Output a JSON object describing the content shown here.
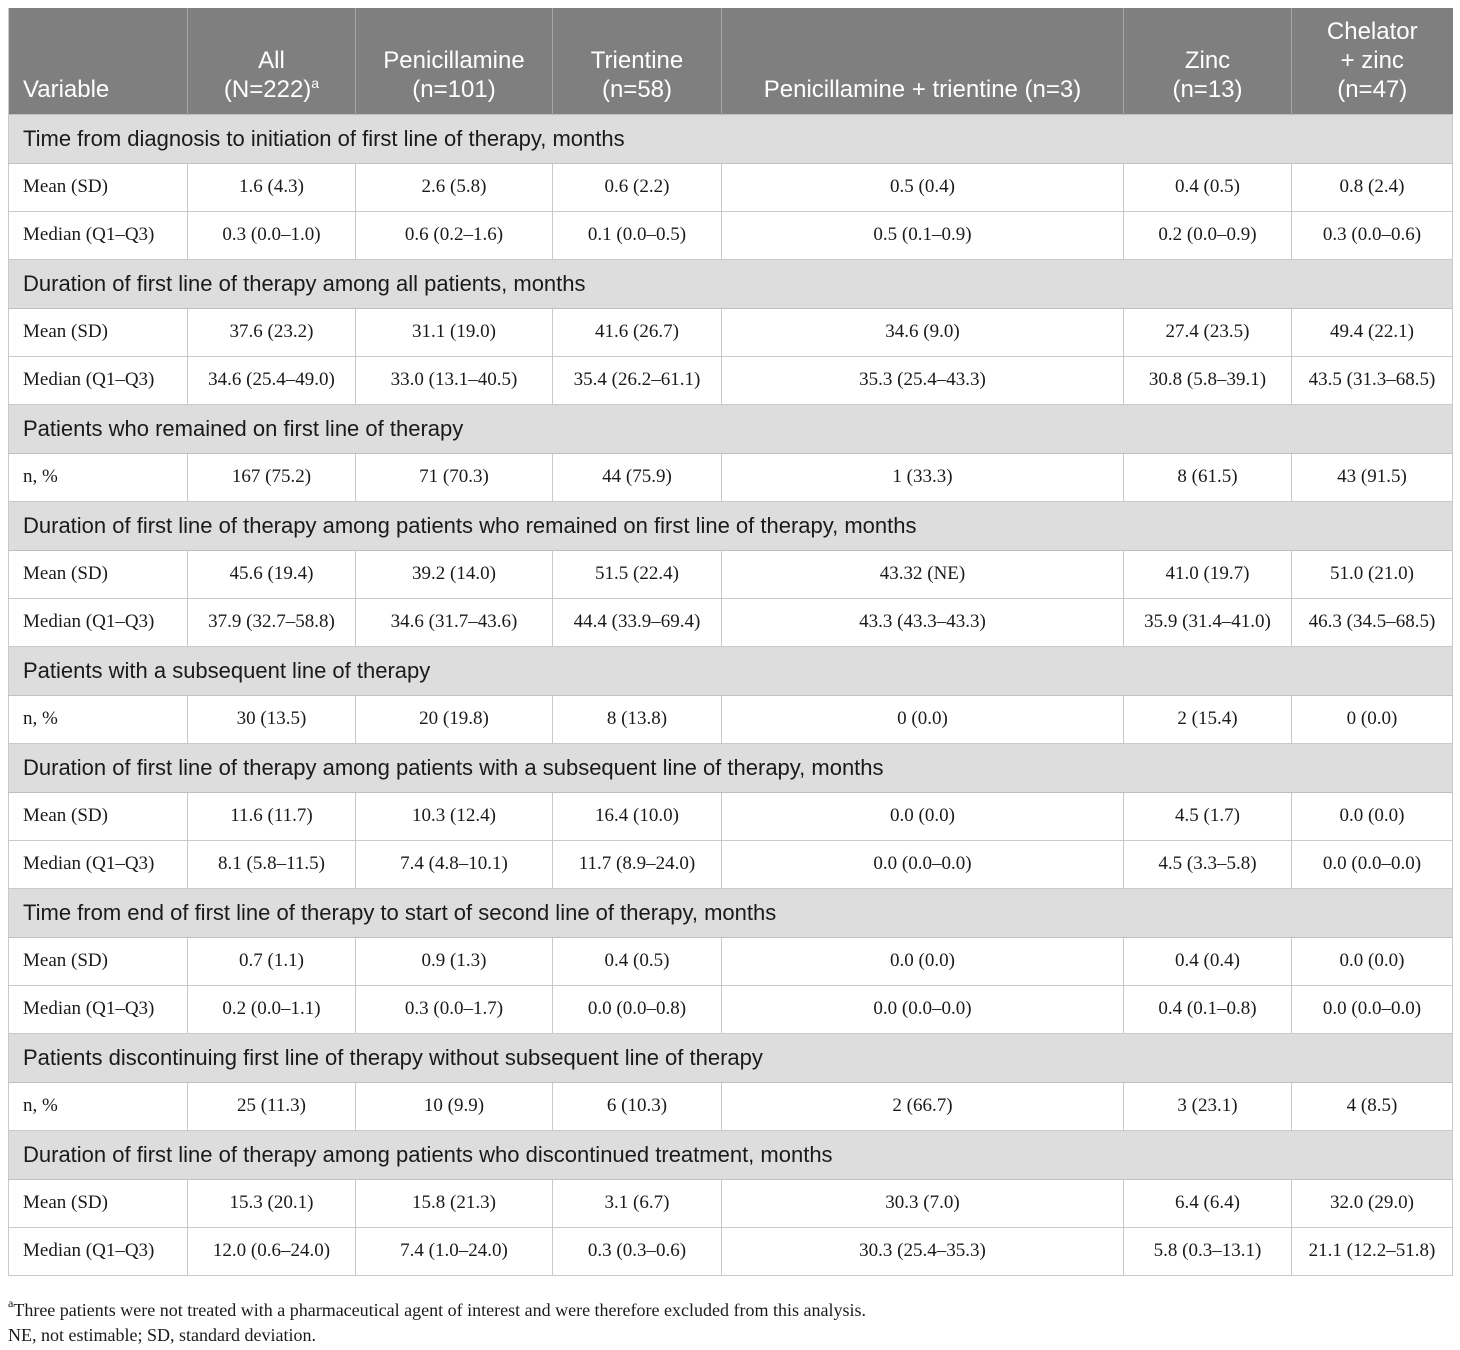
{
  "table": {
    "headers": [
      {
        "lines": [
          "Variable"
        ]
      },
      {
        "lines": [
          "All",
          "(N=222)"
        ],
        "sup": "a"
      },
      {
        "lines": [
          "Penicillamine",
          "(n=101)"
        ]
      },
      {
        "lines": [
          "Trientine",
          "(n=58)"
        ]
      },
      {
        "lines": [
          "Penicillamine + trientine (n=3)"
        ]
      },
      {
        "lines": [
          "Zinc",
          "(n=13)"
        ]
      },
      {
        "lines": [
          "Chelator",
          "+ zinc",
          "(n=47)"
        ]
      }
    ],
    "sections": [
      {
        "title": "Time from diagnosis to initiation of first line of therapy, months",
        "rows": [
          {
            "label": "Mean (SD)",
            "values": [
              "1.6 (4.3)",
              "2.6 (5.8)",
              "0.6 (2.2)",
              "0.5 (0.4)",
              "0.4 (0.5)",
              "0.8 (2.4)"
            ]
          },
          {
            "label": "Median (Q1–Q3)",
            "values": [
              "0.3 (0.0–1.0)",
              "0.6 (0.2–1.6)",
              "0.1 (0.0–0.5)",
              "0.5 (0.1–0.9)",
              "0.2 (0.0–0.9)",
              "0.3 (0.0–0.6)"
            ]
          }
        ]
      },
      {
        "title": "Duration of first line of therapy among all patients, months",
        "rows": [
          {
            "label": "Mean (SD)",
            "values": [
              "37.6 (23.2)",
              "31.1 (19.0)",
              "41.6 (26.7)",
              "34.6 (9.0)",
              "27.4 (23.5)",
              "49.4 (22.1)"
            ]
          },
          {
            "label": "Median (Q1–Q3)",
            "values": [
              "34.6 (25.4–49.0)",
              "33.0 (13.1–40.5)",
              "35.4 (26.2–61.1)",
              "35.3 (25.4–43.3)",
              "30.8 (5.8–39.1)",
              "43.5 (31.3–68.5)"
            ]
          }
        ]
      },
      {
        "title": "Patients who remained on first line of therapy",
        "rows": [
          {
            "label": "n, %",
            "values": [
              "167 (75.2)",
              "71 (70.3)",
              "44 (75.9)",
              "1 (33.3)",
              "8 (61.5)",
              "43 (91.5)"
            ]
          }
        ]
      },
      {
        "title": "Duration of first line of therapy among patients who remained on first line of therapy, months",
        "rows": [
          {
            "label": "Mean (SD)",
            "values": [
              "45.6 (19.4)",
              "39.2 (14.0)",
              "51.5 (22.4)",
              "43.32 (NE)",
              "41.0 (19.7)",
              "51.0 (21.0)"
            ]
          },
          {
            "label": "Median (Q1–Q3)",
            "values": [
              "37.9 (32.7–58.8)",
              "34.6 (31.7–43.6)",
              "44.4 (33.9–69.4)",
              "43.3 (43.3–43.3)",
              "35.9 (31.4–41.0)",
              "46.3 (34.5–68.5)"
            ]
          }
        ]
      },
      {
        "title": "Patients with a subsequent line of therapy",
        "rows": [
          {
            "label": "n, %",
            "values": [
              "30 (13.5)",
              "20 (19.8)",
              "8 (13.8)",
              "0 (0.0)",
              "2 (15.4)",
              "0 (0.0)"
            ]
          }
        ]
      },
      {
        "title": "Duration of first line of therapy among patients with a subsequent line of therapy, months",
        "rows": [
          {
            "label": "Mean (SD)",
            "values": [
              "11.6 (11.7)",
              "10.3 (12.4)",
              "16.4 (10.0)",
              "0.0 (0.0)",
              "4.5 (1.7)",
              "0.0 (0.0)"
            ]
          },
          {
            "label": "Median (Q1–Q3)",
            "values": [
              "8.1 (5.8–11.5)",
              "7.4 (4.8–10.1)",
              "11.7 (8.9–24.0)",
              "0.0 (0.0–0.0)",
              "4.5 (3.3–5.8)",
              "0.0 (0.0–0.0)"
            ]
          }
        ]
      },
      {
        "title": "Time from end of first line of therapy to start of second line of therapy, months",
        "rows": [
          {
            "label": "Mean (SD)",
            "values": [
              "0.7 (1.1)",
              "0.9 (1.3)",
              "0.4 (0.5)",
              "0.0 (0.0)",
              "0.4 (0.4)",
              "0.0 (0.0)"
            ]
          },
          {
            "label": "Median (Q1–Q3)",
            "values": [
              "0.2 (0.0–1.1)",
              "0.3 (0.0–1.7)",
              "0.0 (0.0–0.8)",
              "0.0 (0.0–0.0)",
              "0.4 (0.1–0.8)",
              "0.0 (0.0–0.0)"
            ]
          }
        ]
      },
      {
        "title": "Patients discontinuing first line of therapy without subsequent line of therapy",
        "rows": [
          {
            "label": "n, %",
            "values": [
              "25 (11.3)",
              "10 (9.9)",
              "6 (10.3)",
              "2 (66.7)",
              "3 (23.1)",
              "4 (8.5)"
            ]
          }
        ]
      },
      {
        "title": "Duration of first line of therapy among patients who discontinued treatment, months",
        "rows": [
          {
            "label": "Mean (SD)",
            "values": [
              "15.3 (20.1)",
              "15.8 (21.3)",
              "3.1 (6.7)",
              "30.3 (7.0)",
              "6.4 (6.4)",
              "32.0 (29.0)"
            ]
          },
          {
            "label": "Median (Q1–Q3)",
            "values": [
              "12.0 (0.6–24.0)",
              "7.4 (1.0–24.0)",
              "0.3 (0.3–0.6)",
              "30.3 (25.4–35.3)",
              "5.8 (0.3–13.1)",
              "21.1 (12.2–51.8)"
            ]
          }
        ]
      }
    ]
  },
  "footnotes": [
    {
      "sup": "a",
      "text": "Three patients were not treated with a pharmaceutical agent of interest and were therefore excluded from this analysis."
    },
    {
      "sup": "",
      "text": "NE, not estimable; SD, standard deviation."
    }
  ]
}
